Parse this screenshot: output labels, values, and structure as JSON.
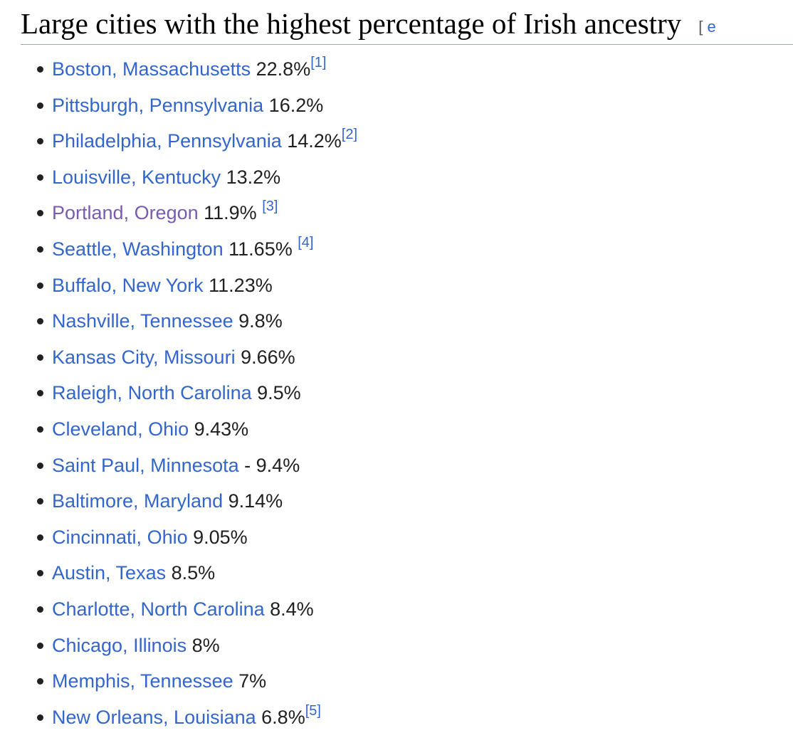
{
  "section": {
    "title": "Large cities with the highest percentage of Irish ancestry",
    "edit_open": "[",
    "edit_label": "e"
  },
  "colors": {
    "link": "#3366cc",
    "visited_link": "#795cb2",
    "text": "#202122"
  },
  "cities": [
    {
      "name": "Boston, Massachusetts",
      "pct": " 22.8%",
      "ref": "[1]"
    },
    {
      "name": "Pittsburgh, Pennsylvania",
      "pct": " 16.2%",
      "ref": ""
    },
    {
      "name": "Philadelphia, Pennsylvania",
      "pct": " 14.2%",
      "ref": "[2]"
    },
    {
      "name": "Louisville, Kentucky",
      "pct": " 13.2%",
      "ref": ""
    },
    {
      "name": "Portland, Oregon",
      "pct": " 11.9% ",
      "ref": "[3]",
      "visited": true
    },
    {
      "name": "Seattle, Washington",
      "pct": " 11.65% ",
      "ref": "[4]"
    },
    {
      "name": "Buffalo, New York",
      "pct": " 11.23%",
      "ref": ""
    },
    {
      "name": "Nashville, Tennessee",
      "pct": " 9.8%",
      "ref": ""
    },
    {
      "name": "Kansas City, Missouri",
      "pct": " 9.66%",
      "ref": ""
    },
    {
      "name": "Raleigh, North Carolina",
      "pct": " 9.5%",
      "ref": ""
    },
    {
      "name": "Cleveland, Ohio",
      "pct": " 9.43%",
      "ref": ""
    },
    {
      "name": "Saint Paul, Minnesota",
      "pct": " - 9.4%",
      "ref": ""
    },
    {
      "name": "Baltimore, Maryland",
      "pct": " 9.14%",
      "ref": ""
    },
    {
      "name": "Cincinnati, Ohio",
      "pct": " 9.05%",
      "ref": ""
    },
    {
      "name": "Austin, Texas",
      "pct": " 8.5%",
      "ref": ""
    },
    {
      "name": "Charlotte, North Carolina",
      "pct": " 8.4%",
      "ref": ""
    },
    {
      "name": "Chicago, Illinois",
      "pct": " 8%",
      "ref": ""
    },
    {
      "name": "Memphis, Tennessee",
      "pct": " 7%",
      "ref": ""
    },
    {
      "name": "New Orleans, Louisiana",
      "pct": " 6.8%",
      "ref": "[5]"
    }
  ]
}
